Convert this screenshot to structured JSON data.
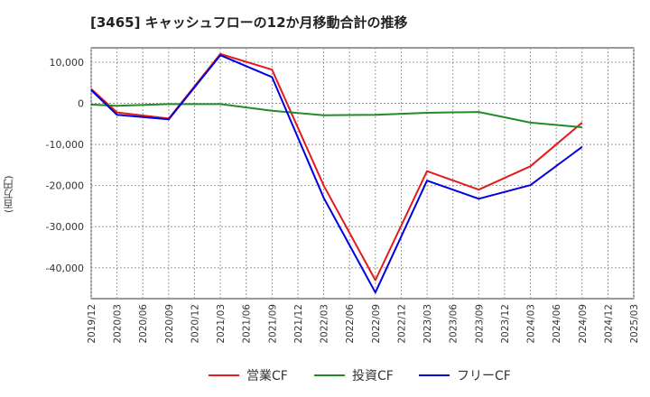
{
  "chart_data": {
    "type": "line",
    "title": "[3465]  キャッシュフローの12か月移動合計の推移",
    "ylabel": "(百万円)",
    "xlabel": "",
    "ylim": [
      -47500,
      13500
    ],
    "yticks": [
      10000,
      0,
      -10000,
      -20000,
      -30000,
      -40000
    ],
    "ytick_labels": [
      "10,000",
      "0",
      "-10,000",
      "-20,000",
      "-30,000",
      "-40,000"
    ],
    "x_labels": [
      "2019/12",
      "2020/03",
      "2020/06",
      "2020/09",
      "2020/12",
      "2021/03",
      "2021/06",
      "2021/09",
      "2021/12",
      "2022/03",
      "2022/06",
      "2022/09",
      "2022/12",
      "2023/03",
      "2023/06",
      "2023/09",
      "2023/12",
      "2024/03",
      "2024/06",
      "2024/09",
      "2024/12",
      "2025/03"
    ],
    "grid": true,
    "legend_position": "bottom-center",
    "series": [
      {
        "name": "営業CF",
        "color": "#e31a1c",
        "points": [
          {
            "x": "2019/12",
            "y": 3500
          },
          {
            "x": "2020/03",
            "y": -2200
          },
          {
            "x": "2020/09",
            "y": -3700
          },
          {
            "x": "2021/03",
            "y": 12000
          },
          {
            "x": "2021/09",
            "y": 8200
          },
          {
            "x": "2022/03",
            "y": -20000
          },
          {
            "x": "2022/09",
            "y": -43000
          },
          {
            "x": "2023/03",
            "y": -16500
          },
          {
            "x": "2023/09",
            "y": -21000
          },
          {
            "x": "2024/03",
            "y": -15300
          },
          {
            "x": "2024/09",
            "y": -4700
          }
        ]
      },
      {
        "name": "投資CF",
        "color": "#238b23",
        "points": [
          {
            "x": "2019/12",
            "y": -300
          },
          {
            "x": "2020/03",
            "y": -600
          },
          {
            "x": "2020/09",
            "y": -200
          },
          {
            "x": "2021/03",
            "y": -200
          },
          {
            "x": "2021/09",
            "y": -1800
          },
          {
            "x": "2022/03",
            "y": -2900
          },
          {
            "x": "2022/09",
            "y": -2800
          },
          {
            "x": "2023/03",
            "y": -2300
          },
          {
            "x": "2023/09",
            "y": -2100
          },
          {
            "x": "2024/03",
            "y": -4700
          },
          {
            "x": "2024/09",
            "y": -5800
          }
        ]
      },
      {
        "name": "フリーCF",
        "color": "#0000e0",
        "points": [
          {
            "x": "2019/12",
            "y": 3200
          },
          {
            "x": "2020/03",
            "y": -2800
          },
          {
            "x": "2020/09",
            "y": -3900
          },
          {
            "x": "2021/03",
            "y": 11700
          },
          {
            "x": "2021/09",
            "y": 6400
          },
          {
            "x": "2022/03",
            "y": -23000
          },
          {
            "x": "2022/09",
            "y": -46000
          },
          {
            "x": "2023/03",
            "y": -18800
          },
          {
            "x": "2023/09",
            "y": -23200
          },
          {
            "x": "2024/03",
            "y": -19900
          },
          {
            "x": "2024/09",
            "y": -10600
          }
        ]
      }
    ]
  }
}
